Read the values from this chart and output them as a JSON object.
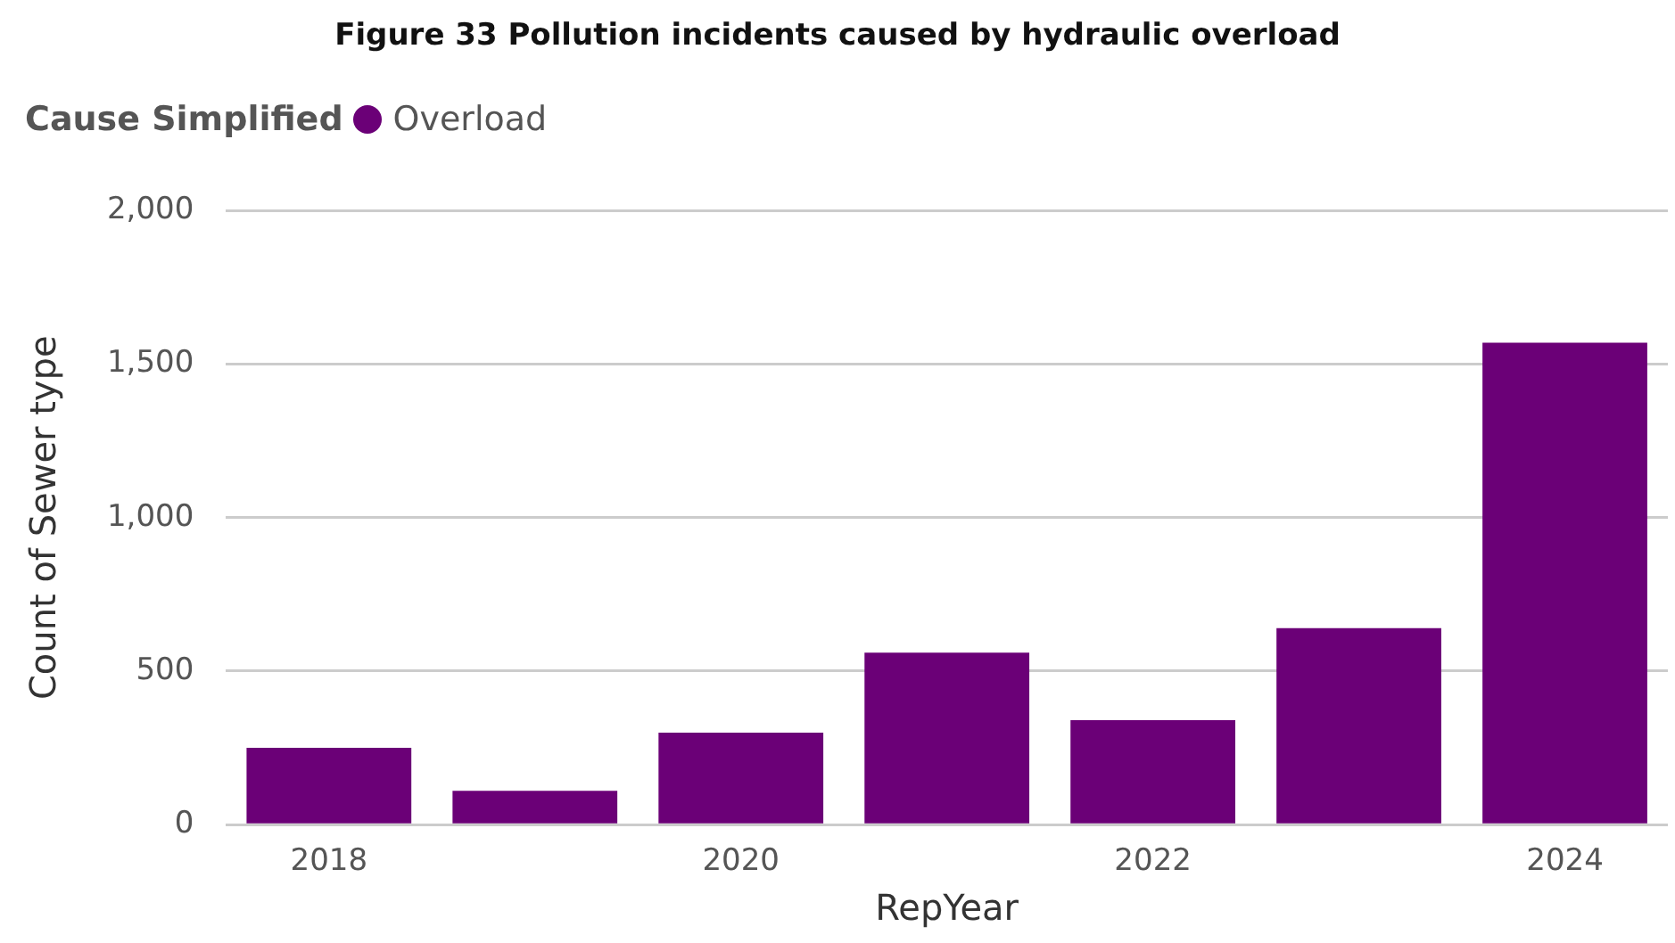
{
  "chart_data": {
    "type": "bar",
    "title": "Figure 33 Pollution incidents caused by hydraulic overload",
    "xlabel": "RepYear",
    "ylabel": "Count of Sewer type",
    "legend_title": "Cause Simplified",
    "categories": [
      "2018",
      null,
      "2020",
      null,
      "2022",
      null,
      "2024"
    ],
    "series": [
      {
        "name": "Overload",
        "color": "#6b0077",
        "values": [
          250,
          110,
          300,
          560,
          340,
          640,
          1570
        ]
      }
    ],
    "ylim": [
      0,
      2000
    ],
    "yticks": [
      0,
      {
        "value": 500,
        "label": "500"
      },
      {
        "value": 1000,
        "label": "1,000"
      },
      {
        "value": 1500,
        "label": "1,500"
      },
      {
        "value": 2000,
        "label": "2,000"
      }
    ],
    "grid": "y",
    "legend": "top left"
  }
}
